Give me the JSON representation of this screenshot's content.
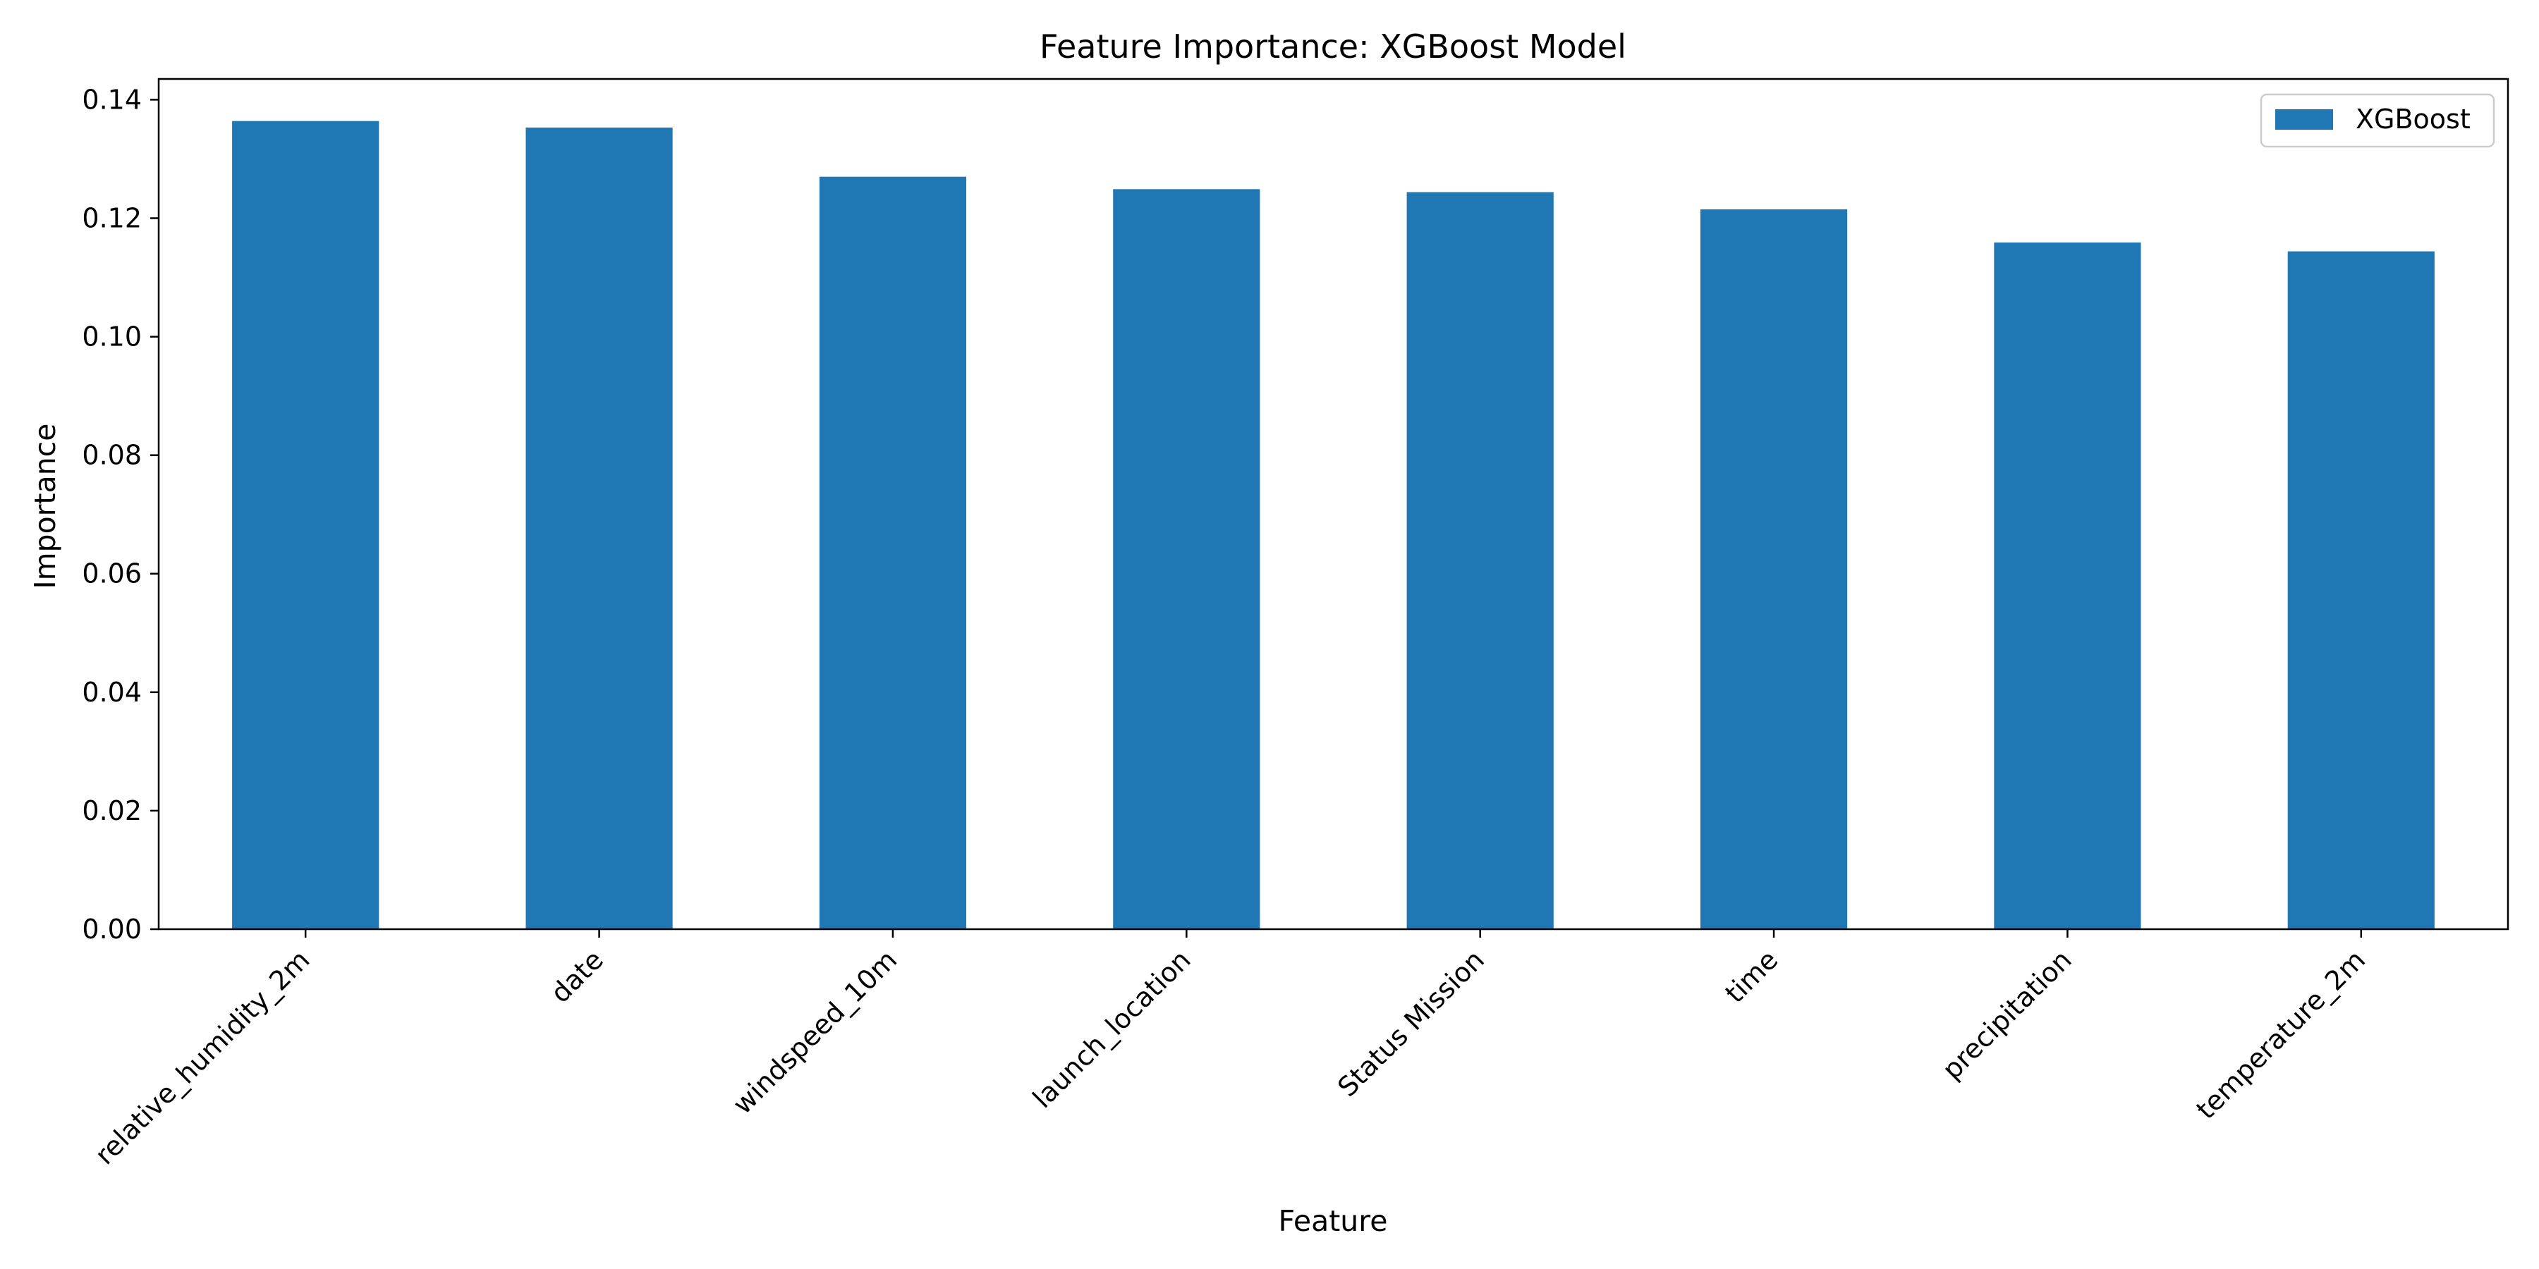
{
  "chart_data": {
    "type": "bar",
    "title": "Feature Importance: XGBoost Model",
    "xlabel": "Feature",
    "ylabel": "Importance",
    "categories": [
      "relative_humidity_2m",
      "date",
      "windspeed_10m",
      "launch_location",
      "Status Mission",
      "time",
      "precipitation",
      "temperature_2m"
    ],
    "series": [
      {
        "name": "XGBoost",
        "values": [
          0.1364,
          0.1353,
          0.127,
          0.1249,
          0.1244,
          0.1215,
          0.1159,
          0.1144
        ]
      }
    ],
    "ylim": [
      0,
      0.1435
    ],
    "yticks": [
      0.0,
      0.02,
      0.04,
      0.06,
      0.08,
      0.1,
      0.12,
      0.14
    ],
    "ytick_labels": [
      "0.00",
      "0.02",
      "0.04",
      "0.06",
      "0.08",
      "0.10",
      "0.12",
      "0.14"
    ],
    "grid": false,
    "legend_position": "top-right",
    "colors": {
      "bar": "#1f77b4",
      "axis": "#000000",
      "legend_border": "#cccccc"
    }
  }
}
